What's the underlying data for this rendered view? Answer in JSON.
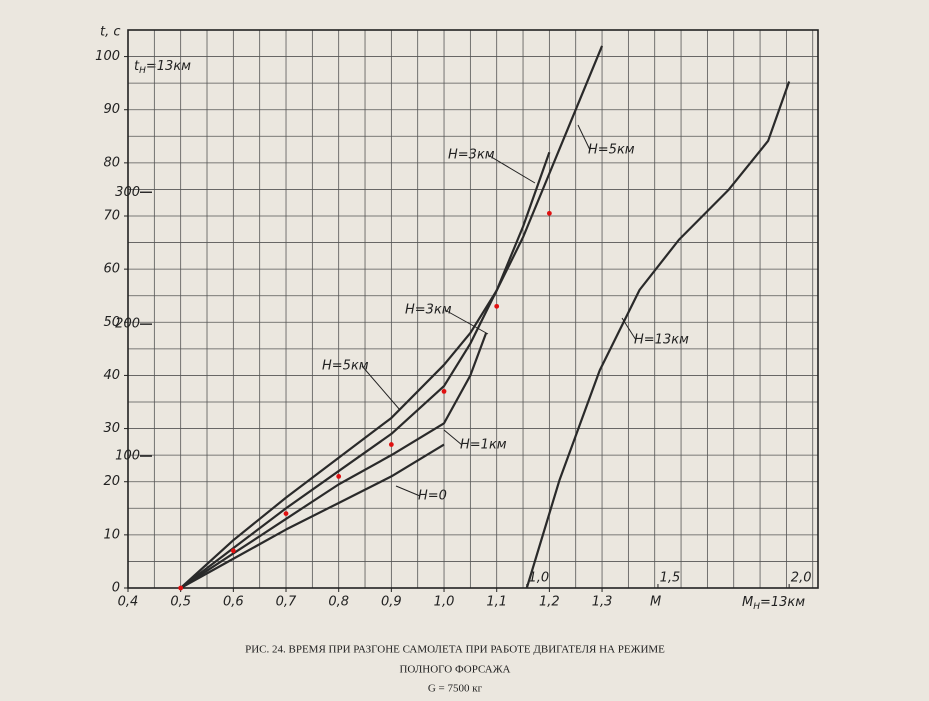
{
  "chart_data": {
    "type": "line",
    "ylabel": "t, c",
    "xlabel": "M",
    "y2label": {
      "main": "t",
      "sub": "H",
      "rest": "=13км"
    },
    "x2label": {
      "main": "M",
      "sub": "H",
      "rest": "=13км"
    },
    "xlim": [
      0.4,
      1.71
    ],
    "ylim": [
      0,
      105
    ],
    "x2lim": [
      -0.52,
      2.11
    ],
    "y2lim": [
      0,
      423
    ],
    "grid": true,
    "grid_step": [
      0.05,
      5
    ],
    "xticks": [
      {
        "value": 0.4,
        "label": "0,4"
      },
      {
        "value": 0.5,
        "label": "0,5"
      },
      {
        "value": 0.6,
        "label": "0,6"
      },
      {
        "value": 0.7,
        "label": "0,7"
      },
      {
        "value": 0.8,
        "label": "0,8"
      },
      {
        "value": 0.9,
        "label": "0,9"
      },
      {
        "value": 1.0,
        "label": "1,0"
      },
      {
        "value": 1.1,
        "label": "1,1"
      },
      {
        "value": 1.2,
        "label": "1,2"
      },
      {
        "value": 1.3,
        "label": "1,3"
      }
    ],
    "yticks": [
      0,
      10,
      20,
      30,
      40,
      50,
      60,
      70,
      80,
      90,
      100
    ],
    "x2ticks": [
      {
        "value": 1.0,
        "label": "1,0"
      },
      {
        "value": 1.5,
        "label": "1,5"
      },
      {
        "value": 2.0,
        "label": "2,0"
      }
    ],
    "y2ticks": [
      100,
      200,
      300
    ],
    "series": [
      {
        "color": "#2a2a2a",
        "x": [
          0.5,
          0.6,
          0.7,
          0.8,
          0.9,
          1.0
        ],
        "values": [
          0,
          5.5,
          11,
          16,
          21,
          27
        ]
      },
      {
        "color": "#2a2a2a",
        "x": [
          0.5,
          0.6,
          0.7,
          0.8,
          0.9,
          1.0,
          1.05,
          1.08
        ],
        "values": [
          0,
          6.5,
          13,
          19.5,
          25,
          31,
          40,
          48
        ]
      },
      {
        "color": "#2a2a2a",
        "x": [
          0.5,
          0.6,
          0.7,
          0.8,
          0.9,
          1.0,
          1.05,
          1.1,
          1.15,
          1.2
        ],
        "values": [
          0,
          7.5,
          15,
          22,
          29,
          38,
          46,
          56,
          68,
          82
        ]
      },
      {
        "color": "#2a2a2a",
        "x": [
          0.5,
          0.6,
          0.7,
          0.8,
          0.9,
          1.0,
          1.05,
          1.1,
          1.15,
          1.2,
          1.25,
          1.3
        ],
        "values": [
          0,
          9,
          17,
          24.5,
          32,
          42,
          48,
          56,
          66,
          78,
          90,
          102
        ]
      },
      {
        "color": "#2a2a2a",
        "axis": "y2",
        "x": [
          1.0,
          1.125,
          1.278,
          1.43,
          1.58,
          1.77,
          1.92,
          2.0
        ],
        "values": [
          0,
          82,
          165,
          226,
          264,
          302,
          339,
          384
        ]
      },
      {
        "color": "#e01010",
        "marker": true,
        "line": false,
        "x": [
          0.5,
          0.6,
          0.7,
          0.8,
          0.9,
          1.0,
          1.1,
          1.2
        ],
        "values": [
          0,
          7,
          14,
          21,
          27,
          37,
          53,
          70.5
        ]
      }
    ],
    "annotations": [
      "H=3км",
      "H=5км",
      "H=3км",
      "H=5км",
      "H=1км",
      "H=0",
      "H=13км"
    ],
    "caption": [
      "РИС. 24. ВРЕМЯ ПРИ РАЗГОНЕ САМОЛЕТА ПРИ РАБОТЕ  ДВИГАТЕЛЯ НА РЕЖИМЕ",
      "ПОЛНОГО ФОРСАЖА",
      "G = 7500 кг"
    ]
  }
}
